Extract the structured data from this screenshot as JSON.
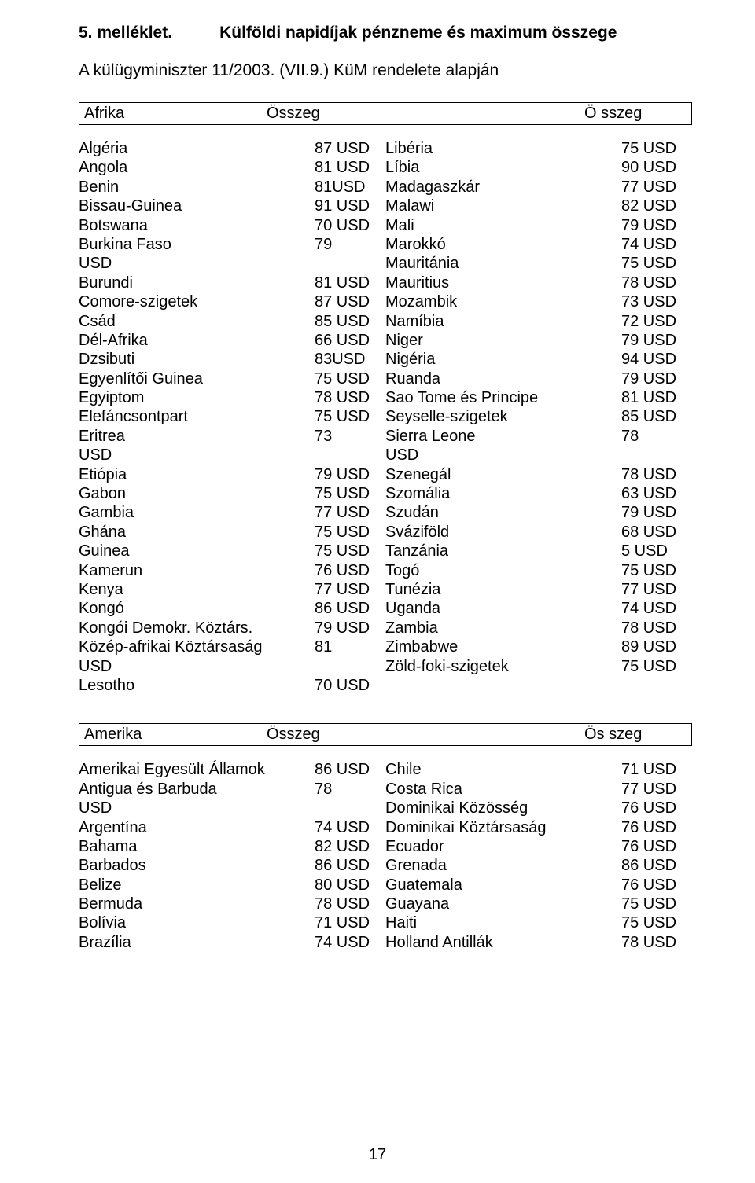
{
  "heading": {
    "left": "5. melléklet.",
    "right": "Külföldi napidíjak pénzneme és maximum összege"
  },
  "sub": "A külügyminiszter 11/2003. (VII.9.) KüM rendelete alapján",
  "afrika": {
    "region": "Afrika",
    "h2": "Összeg",
    "h3": "Ö sszeg",
    "left": [
      {
        "l": "Algéria",
        "v": "87 USD"
      },
      {
        "l": "Angola",
        "v": "81 USD"
      },
      {
        "l": "Benin",
        "v": "81USD"
      },
      {
        "l": "Bissau-Guinea",
        "v": "91 USD"
      },
      {
        "l": "Botswana",
        "v": "70 USD"
      },
      {
        "l": "Burkina Faso",
        "v": "79"
      },
      {
        "l": "USD",
        "v": ""
      },
      {
        "l": "Burundi",
        "v": "81 USD"
      },
      {
        "l": "Comore-szigetek",
        "v": "87 USD"
      },
      {
        "l": "Csád",
        "v": "85 USD"
      },
      {
        "l": "Dél-Afrika",
        "v": "66 USD"
      },
      {
        "l": "Dzsibuti",
        "v": "83USD"
      },
      {
        "l": "Egyenlítői Guinea",
        "v": "75 USD"
      },
      {
        "l": "Egyiptom",
        "v": "78 USD"
      },
      {
        "l": "Elefáncsontpart",
        "v": "75 USD"
      },
      {
        "l": "Eritrea",
        "v": "73"
      },
      {
        "l": "USD",
        "v": ""
      },
      {
        "l": "Etiópia",
        "v": "79 USD"
      },
      {
        "l": "Gabon",
        "v": "75 USD"
      },
      {
        "l": "Gambia",
        "v": "77 USD"
      },
      {
        "l": "Ghána",
        "v": "75 USD"
      },
      {
        "l": "Guinea",
        "v": "75 USD"
      },
      {
        "l": "Kamerun",
        "v": "76 USD"
      },
      {
        "l": "Kenya",
        "v": "77 USD"
      },
      {
        "l": "Kongó",
        "v": "86 USD"
      },
      {
        "l": "Kongói Demokr. Köztárs.",
        "v": "79 USD"
      },
      {
        "l": "Közép-afrikai Köztársaság",
        "v": "81"
      },
      {
        "l": "USD",
        "v": ""
      },
      {
        "l": "Lesotho",
        "v": "70 USD"
      }
    ],
    "right": [
      {
        "l": "Libéria",
        "v": "75 USD"
      },
      {
        "l": "Líbia",
        "v": "90 USD"
      },
      {
        "l": "Madagaszkár",
        "v": "77 USD"
      },
      {
        "l": "Malawi",
        "v": "82 USD"
      },
      {
        "l": "Mali",
        "v": "79 USD"
      },
      {
        "l": "Marokkó",
        "v": "74 USD"
      },
      {
        "l": "Mauritánia",
        "v": "75 USD"
      },
      {
        "l": "Mauritius",
        "v": "78 USD"
      },
      {
        "l": "Mozambik",
        "v": "73 USD"
      },
      {
        "l": "Namíbia",
        "v": "72 USD"
      },
      {
        "l": "Niger",
        "v": "79 USD"
      },
      {
        "l": "Nigéria",
        "v": "94 USD"
      },
      {
        "l": "Ruanda",
        "v": "79 USD"
      },
      {
        "l": "Sao Tome és Principe",
        "v": "81 USD"
      },
      {
        "l": "Seyselle-szigetek",
        "v": "85 USD"
      },
      {
        "l": "Sierra Leone",
        "v": "78"
      },
      {
        "l": "USD",
        "v": ""
      },
      {
        "l": "Szenegál",
        "v": "78 USD"
      },
      {
        "l": "Szomália",
        "v": "63 USD"
      },
      {
        "l": "Szudán",
        "v": "79 USD"
      },
      {
        "l": "Sváziföld",
        "v": "68 USD"
      },
      {
        "l": "Tanzánia",
        "v": "5 USD"
      },
      {
        "l": "Togó",
        "v": "75 USD"
      },
      {
        "l": "Tunézia",
        "v": "77 USD"
      },
      {
        "l": "Uganda",
        "v": "74 USD"
      },
      {
        "l": "Zambia",
        "v": "78 USD"
      },
      {
        "l": "Zimbabwe",
        "v": "89 USD"
      },
      {
        "l": "Zöld-foki-szigetek",
        "v": "75 USD"
      }
    ]
  },
  "amerika": {
    "region": "Amerika",
    "h2": "Összeg",
    "h3": "Ös szeg",
    "left": [
      {
        "l": "Amerikai Egyesült Államok",
        "v": "86 USD"
      },
      {
        "l": "Antigua és Barbuda",
        "v": "78"
      },
      {
        "l": "USD",
        "v": ""
      },
      {
        "l": "Argentína",
        "v": "74 USD"
      },
      {
        "l": "Bahama",
        "v": "82 USD"
      },
      {
        "l": "Barbados",
        "v": "86 USD"
      },
      {
        "l": "Belize",
        "v": "80 USD"
      },
      {
        "l": "Bermuda",
        "v": "78 USD"
      },
      {
        "l": "Bolívia",
        "v": "71 USD"
      },
      {
        "l": "Brazília",
        "v": "74 USD"
      }
    ],
    "right": [
      {
        "l": "Chile",
        "v": "71 USD"
      },
      {
        "l": "Costa Rica",
        "v": "77 USD"
      },
      {
        "l": "Dominikai Közösség",
        "v": "76 USD"
      },
      {
        "l": "Dominikai Köztársaság",
        "v": "76 USD"
      },
      {
        "l": "Ecuador",
        "v": "76 USD"
      },
      {
        "l": "Grenada",
        "v": "86 USD"
      },
      {
        "l": "Guatemala",
        "v": "76 USD"
      },
      {
        "l": "Guayana",
        "v": "75 USD"
      },
      {
        "l": "Haiti",
        "v": "75 USD"
      },
      {
        "l": "Holland Antillák",
        "v": "78 USD"
      }
    ]
  },
  "pagenum": "17"
}
